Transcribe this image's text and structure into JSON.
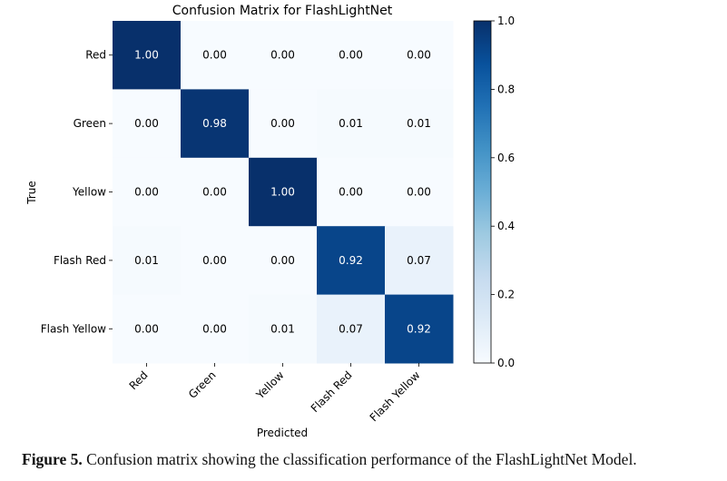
{
  "chart_data": {
    "type": "heatmap",
    "title": "Confusion Matrix for FlashLightNet",
    "xlabel": "Predicted",
    "ylabel": "True",
    "x_categories": [
      "Red",
      "Green",
      "Yellow",
      "Flash Red",
      "Flash Yellow"
    ],
    "y_categories": [
      "Red",
      "Green",
      "Yellow",
      "Flash Red",
      "Flash Yellow"
    ],
    "values": [
      [
        1.0,
        0.0,
        0.0,
        0.0,
        0.0
      ],
      [
        0.0,
        0.98,
        0.0,
        0.01,
        0.01
      ],
      [
        0.0,
        0.0,
        1.0,
        0.0,
        0.0
      ],
      [
        0.01,
        0.0,
        0.0,
        0.92,
        0.07
      ],
      [
        0.0,
        0.0,
        0.01,
        0.07,
        0.92
      ]
    ],
    "value_labels": [
      [
        "1.00",
        "0.00",
        "0.00",
        "0.00",
        "0.00"
      ],
      [
        "0.00",
        "0.98",
        "0.00",
        "0.01",
        "0.01"
      ],
      [
        "0.00",
        "0.00",
        "1.00",
        "0.00",
        "0.00"
      ],
      [
        "0.01",
        "0.00",
        "0.00",
        "0.92",
        "0.07"
      ],
      [
        "0.00",
        "0.00",
        "0.01",
        "0.07",
        "0.92"
      ]
    ],
    "colormap": "Blues",
    "vmin": 0.0,
    "vmax": 1.0,
    "colorbar_ticks": [
      "0.0",
      "0.2",
      "0.4",
      "0.6",
      "0.8",
      "1.0"
    ],
    "grid": false
  },
  "caption": {
    "label": "Figure 5.",
    "text": " Confusion matrix showing the classification performance of the FlashLightNet Model."
  }
}
